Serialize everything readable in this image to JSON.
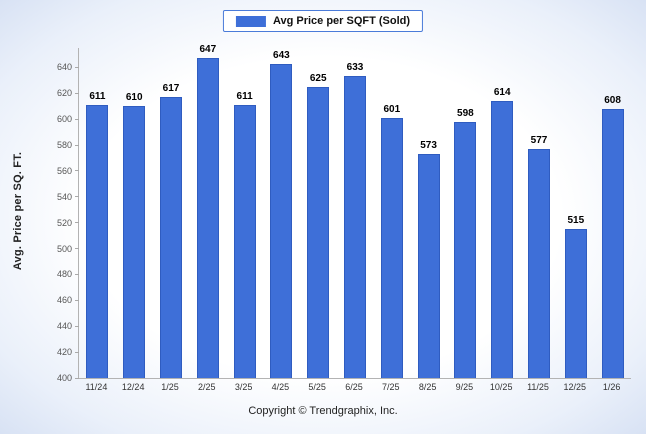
{
  "legend": {
    "label": "Avg Price per SQFT (Sold)"
  },
  "footer": {
    "copyright": "Copyright © Trendgraphix, Inc."
  },
  "chart_data": {
    "type": "bar",
    "title": "",
    "legend": "Avg Price per SQFT (Sold)",
    "xlabel": "",
    "ylabel": "Avg. Price per SQ. FT.",
    "categories": [
      "11/24",
      "12/24",
      "1/25",
      "2/25",
      "3/25",
      "4/25",
      "5/25",
      "6/25",
      "7/25",
      "8/25",
      "9/25",
      "10/25",
      "11/25",
      "12/25",
      "1/26"
    ],
    "values": [
      611,
      610,
      617,
      647,
      611,
      643,
      625,
      633,
      601,
      573,
      598,
      614,
      577,
      515,
      608
    ],
    "ylim": [
      400,
      655
    ],
    "yticks": [
      400,
      420,
      440,
      460,
      480,
      500,
      520,
      540,
      560,
      580,
      600,
      620,
      640
    ],
    "bar_color": "#3e6fd8",
    "grid": false,
    "legend_position": "top"
  }
}
